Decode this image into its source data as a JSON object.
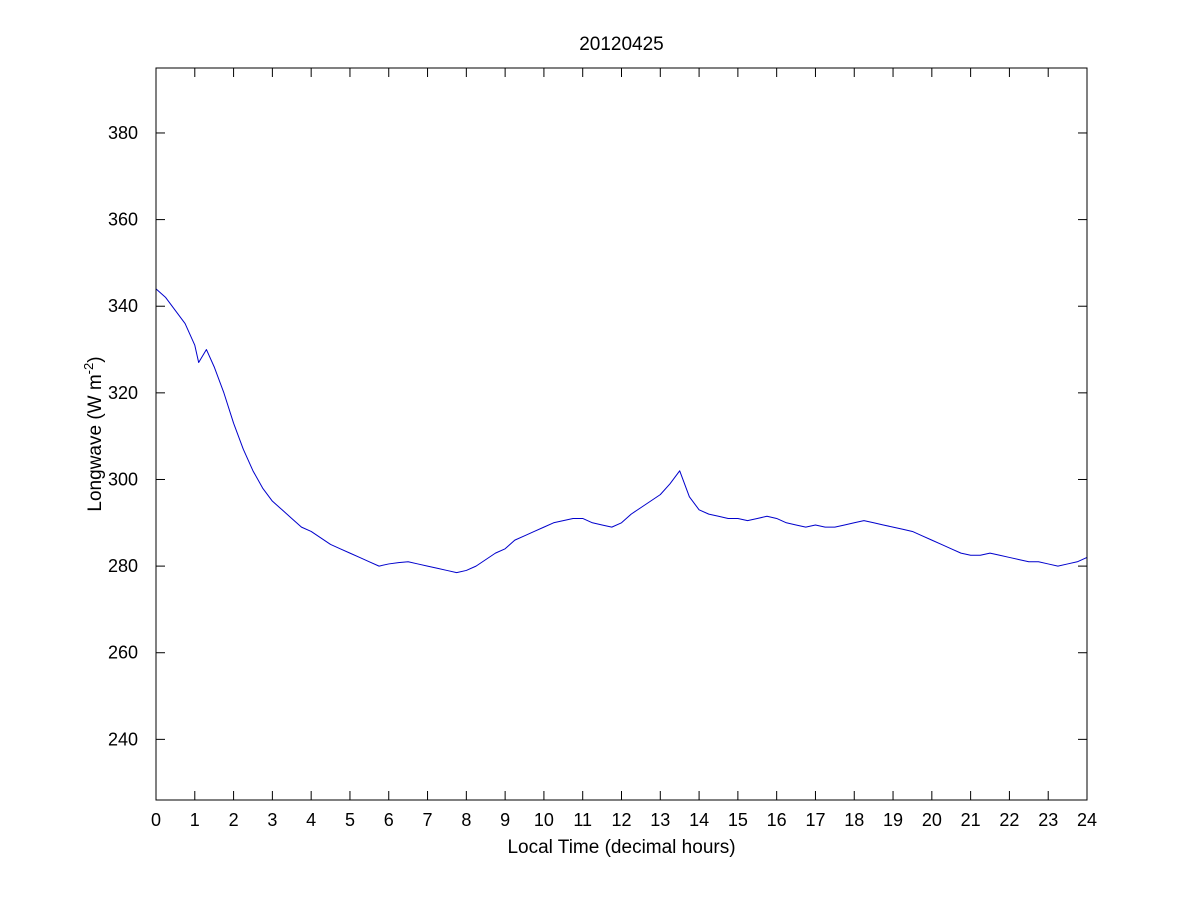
{
  "colors": {
    "line": "#0000cc",
    "axes": "#000000",
    "background": "#ffffff"
  },
  "chart_data": {
    "type": "line",
    "title": "20120425",
    "xlabel": "Local Time (decimal hours)",
    "ylabel": {
      "prefix": "Longwave (W m",
      "superscript": "-2",
      "suffix": ")"
    },
    "xlim": [
      0,
      24
    ],
    "ylim": [
      226,
      395
    ],
    "xticks": [
      0,
      1,
      2,
      3,
      4,
      5,
      6,
      7,
      8,
      9,
      10,
      11,
      12,
      13,
      14,
      15,
      16,
      17,
      18,
      19,
      20,
      21,
      22,
      23,
      24
    ],
    "yticks": [
      240,
      260,
      280,
      300,
      320,
      340,
      360,
      380
    ],
    "grid": false,
    "legend": "none",
    "series": [
      {
        "x": [
          0,
          0.25,
          0.5,
          0.75,
          1.0,
          1.1,
          1.3,
          1.5,
          1.75,
          2.0,
          2.25,
          2.5,
          2.75,
          3.0,
          3.25,
          3.5,
          3.75,
          4.0,
          4.25,
          4.5,
          4.75,
          5.0,
          5.25,
          5.5,
          5.75,
          6.0,
          6.25,
          6.5,
          6.75,
          7.0,
          7.25,
          7.5,
          7.75,
          8.0,
          8.25,
          8.5,
          8.75,
          9.0,
          9.25,
          9.5,
          9.75,
          10.0,
          10.25,
          10.5,
          10.75,
          11.0,
          11.25,
          11.5,
          11.75,
          12.0,
          12.25,
          12.5,
          12.75,
          13.0,
          13.25,
          13.5,
          13.75,
          14.0,
          14.25,
          14.5,
          14.75,
          15.0,
          15.25,
          15.5,
          15.75,
          16.0,
          16.25,
          16.5,
          16.75,
          17.0,
          17.25,
          17.5,
          17.75,
          18.0,
          18.25,
          18.5,
          18.75,
          19.0,
          19.25,
          19.5,
          19.75,
          20.0,
          20.25,
          20.5,
          20.75,
          21.0,
          21.25,
          21.5,
          21.75,
          22.0,
          22.25,
          22.5,
          22.75,
          23.0,
          23.25,
          23.5,
          23.75,
          24.0
        ],
        "y": [
          344,
          342,
          339,
          336,
          331,
          327,
          330,
          326,
          320,
          313,
          307,
          302,
          298,
          295,
          293,
          291,
          289,
          288,
          286.5,
          285,
          284,
          283,
          282,
          281,
          280,
          280.5,
          280.8,
          281,
          280.5,
          280,
          279.5,
          279,
          278.5,
          279,
          280,
          281.5,
          283,
          284,
          286,
          287,
          288,
          289,
          290,
          290.5,
          291,
          291,
          290,
          289.5,
          289,
          290,
          292,
          293.5,
          295,
          296.5,
          299,
          302,
          296,
          293,
          292,
          291.5,
          291,
          291,
          290.5,
          291,
          291.5,
          291,
          290,
          289.5,
          289,
          289.5,
          289,
          289,
          289.5,
          290,
          290.5,
          290,
          289.5,
          289,
          288.5,
          288,
          287,
          286,
          285,
          284,
          283,
          282.5,
          282.5,
          283,
          282.5,
          282,
          281.5,
          281,
          281,
          280.5,
          280,
          280.5,
          281,
          282
        ]
      }
    ]
  }
}
